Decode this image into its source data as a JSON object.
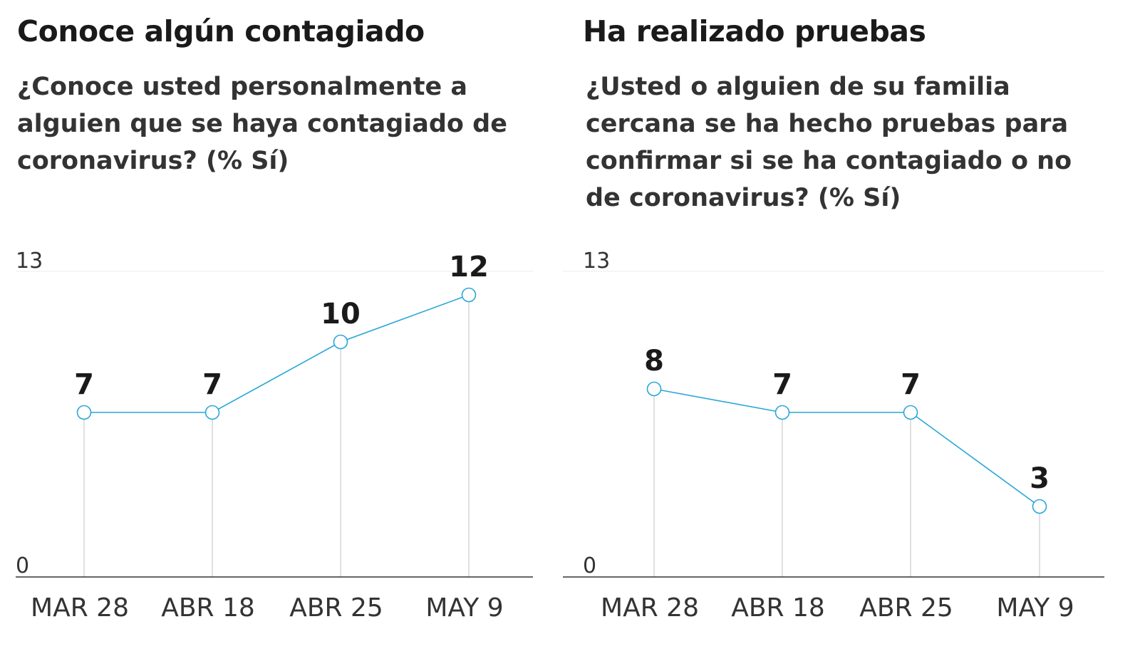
{
  "chart_data": [
    {
      "type": "line",
      "title": "Conoce algún contagiado",
      "subtitle": "¿Conoce usted personalmente a alguien que se haya contagiado de coronavirus?  (% Sí)",
      "categories": [
        "MAR 28",
        "ABR 18",
        "ABR 25",
        "MAY 9"
      ],
      "series": [
        {
          "values": [
            7,
            7,
            10,
            12
          ]
        }
      ],
      "ylim": [
        0,
        13
      ],
      "yticks": [
        "0",
        "13"
      ],
      "grid": false,
      "line_color": "#29a6d8",
      "axis_color": "#333333",
      "drop_line_color": "#cccccc"
    },
    {
      "type": "line",
      "title": "Ha realizado pruebas",
      "subtitle": "¿Usted o alguien de su familia cercana se ha hecho pruebas para confirmar si se ha contagiado o no de coronavirus? (% Sí)",
      "categories": [
        "MAR 28",
        "ABR 18",
        "ABR 25",
        "MAY 9"
      ],
      "series": [
        {
          "values": [
            8,
            7,
            7,
            3
          ]
        }
      ],
      "ylim": [
        0,
        13
      ],
      "yticks": [
        "0",
        "13"
      ],
      "grid": false,
      "line_color": "#29a6d8",
      "axis_color": "#333333",
      "drop_line_color": "#cccccc"
    }
  ]
}
